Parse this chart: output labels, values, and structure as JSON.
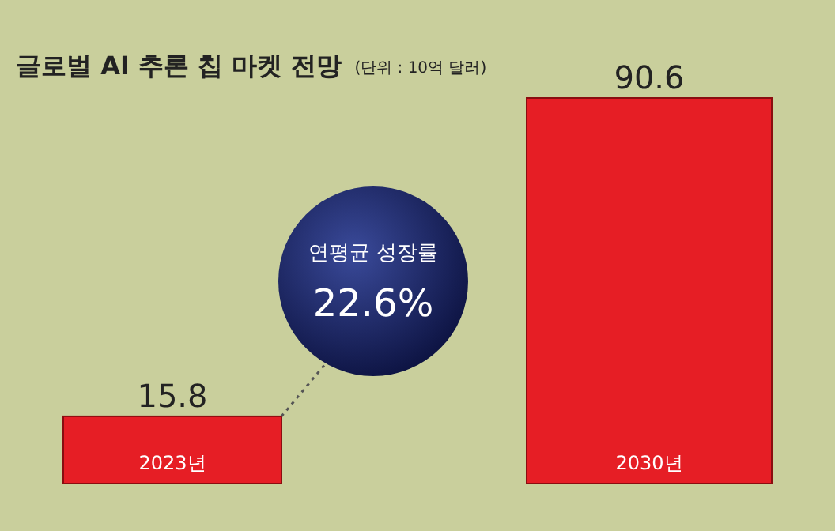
{
  "chart_data": {
    "type": "bar",
    "title": "글로벌 AI 추론 칩 마켓 전망",
    "subtitle": "(단위 : 10억 달러)",
    "categories": [
      "2023년",
      "2030년"
    ],
    "values": [
      15.8,
      90.6
    ],
    "color": "#e61e25",
    "data_labels": true,
    "annotations": [
      "연평균 성장률",
      "22.6%"
    ]
  }
}
